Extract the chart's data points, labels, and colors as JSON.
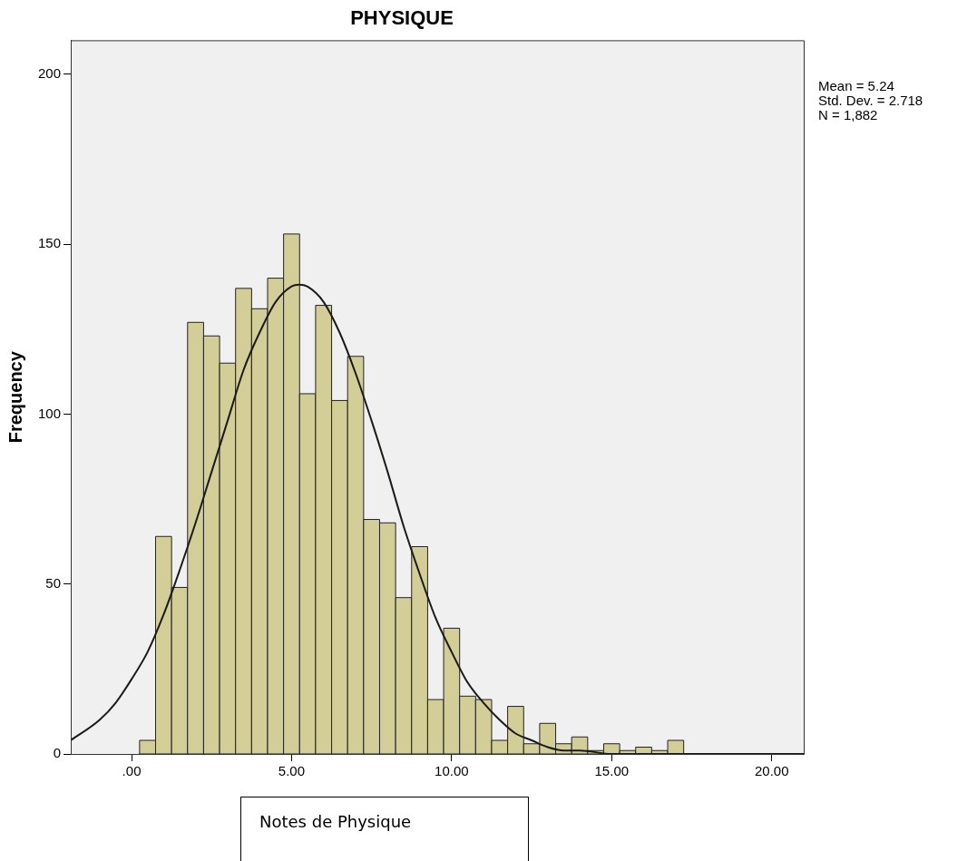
{
  "chart_data": {
    "type": "histogram",
    "title": "PHYSIQUE",
    "xlabel": "Notes de Physique",
    "ylabel": "Frequency",
    "annotations": [
      "Mean = 5.24",
      "Std. Dev. = 2.718",
      "N = 1,882"
    ],
    "xlim": [
      -1.9,
      21
    ],
    "xticks": [
      {
        "value": 0,
        "label": ".00"
      },
      {
        "value": 5,
        "label": "5.00"
      },
      {
        "value": 10,
        "label": "10.00"
      },
      {
        "value": 15,
        "label": "15.00"
      },
      {
        "value": 20,
        "label": "20.00"
      }
    ],
    "ylim": [
      0,
      210
    ],
    "yticks": [
      0,
      50,
      100,
      150,
      200
    ],
    "grid": false,
    "series": [
      {
        "color": "#d3ce97",
        "bins": [
          0.25,
          0.75,
          1.25,
          1.75,
          2.25,
          2.75,
          3.25,
          3.75,
          4.25,
          4.75,
          5.25,
          5.75,
          6.25,
          6.75,
          7.25,
          7.75,
          8.25,
          8.75,
          9.25,
          9.75,
          10.25,
          10.75,
          11.25,
          11.75,
          12.25,
          12.75,
          13.25,
          13.75,
          14.25,
          14.75,
          15.25,
          15.75,
          16.25,
          16.75,
          17.25
        ],
        "values": [
          4,
          64,
          49,
          127,
          123,
          115,
          137,
          131,
          140,
          153,
          106,
          132,
          104,
          117,
          69,
          68,
          46,
          61,
          16,
          37,
          17,
          16,
          4,
          14,
          3,
          9,
          3,
          5,
          1,
          3,
          1,
          2,
          1,
          4
        ]
      },
      {
        "type": "line",
        "color": "#1a1a1a",
        "marker": "none",
        "line_style": "solid",
        "x": [
          -1.9,
          -1,
          -0.5,
          0,
          0.5,
          1,
          1.5,
          2,
          2.5,
          3,
          3.5,
          4,
          4.5,
          5,
          5.24,
          5.5,
          6,
          6.5,
          7,
          7.5,
          8,
          8.5,
          9,
          9.5,
          10,
          10.5,
          11,
          11.5,
          12,
          12.5,
          13,
          13.5,
          14,
          15,
          16,
          17,
          18,
          19,
          20,
          21
        ],
        "values": [
          4,
          10,
          15,
          22,
          30,
          41,
          54,
          68,
          83,
          98,
          113,
          124,
          133,
          137.6,
          138.1,
          137.5,
          133,
          124,
          112,
          98,
          83,
          67,
          53,
          40,
          30,
          21,
          15,
          10,
          6,
          4,
          2,
          1,
          1,
          0,
          0,
          0,
          0,
          0,
          0,
          0
        ]
      }
    ]
  }
}
